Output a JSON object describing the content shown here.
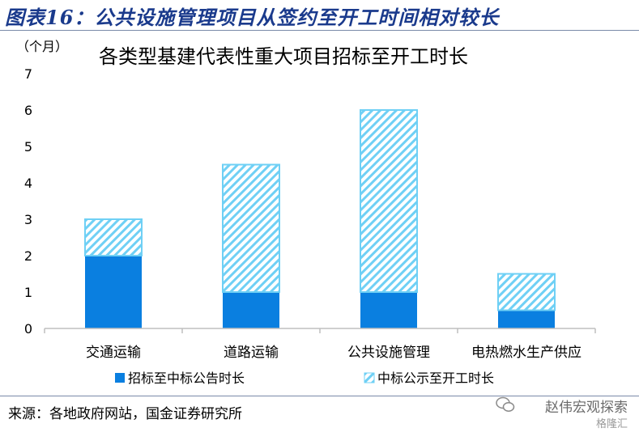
{
  "figure_title": "图表16：公共设施管理项目从签约至开工时间相对较长",
  "source_note": "来源：各地政府网站，国金证券研究所",
  "watermark": {
    "text": "赵伟宏观探索",
    "sub": "格隆汇"
  },
  "colors": {
    "base": "#0a7fe0",
    "stack": "#6fd0f5",
    "hatch_bg": "#ffffff",
    "title": "#1a3a8c"
  },
  "chart_data": {
    "type": "bar",
    "stacked": true,
    "title": "各类型基建代表性重大项目招标至开工时长",
    "unit_label": "（个月）",
    "categories": [
      "交通运输",
      "道路运输",
      "公共设施管理",
      "电热燃水生产供应"
    ],
    "series": [
      {
        "name": "招标至中标公告时长",
        "values": [
          2.0,
          1.0,
          1.0,
          0.5
        ],
        "pattern": "solid"
      },
      {
        "name": "中标公示至开工时长",
        "values": [
          1.0,
          3.5,
          5.0,
          1.0
        ],
        "pattern": "hatch"
      }
    ],
    "ylim": [
      0,
      7
    ],
    "yticks": [
      0,
      1,
      2,
      3,
      4,
      5,
      6,
      7
    ],
    "legend_position": "bottom",
    "grid": false
  }
}
